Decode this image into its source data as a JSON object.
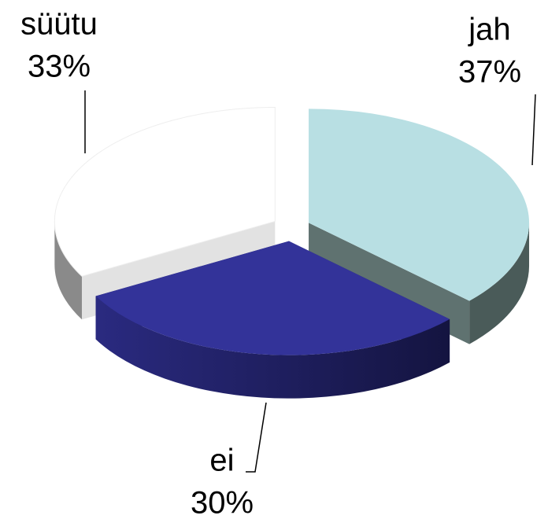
{
  "chart_data": {
    "type": "pie3d",
    "categories": [
      "jah",
      "ei",
      "süütu"
    ],
    "values": [
      37,
      30,
      33
    ],
    "value_labels": [
      "37%",
      "30%",
      "33%"
    ],
    "colors": [
      "#b8dfe3",
      "#333399",
      "#ffffff"
    ]
  }
}
